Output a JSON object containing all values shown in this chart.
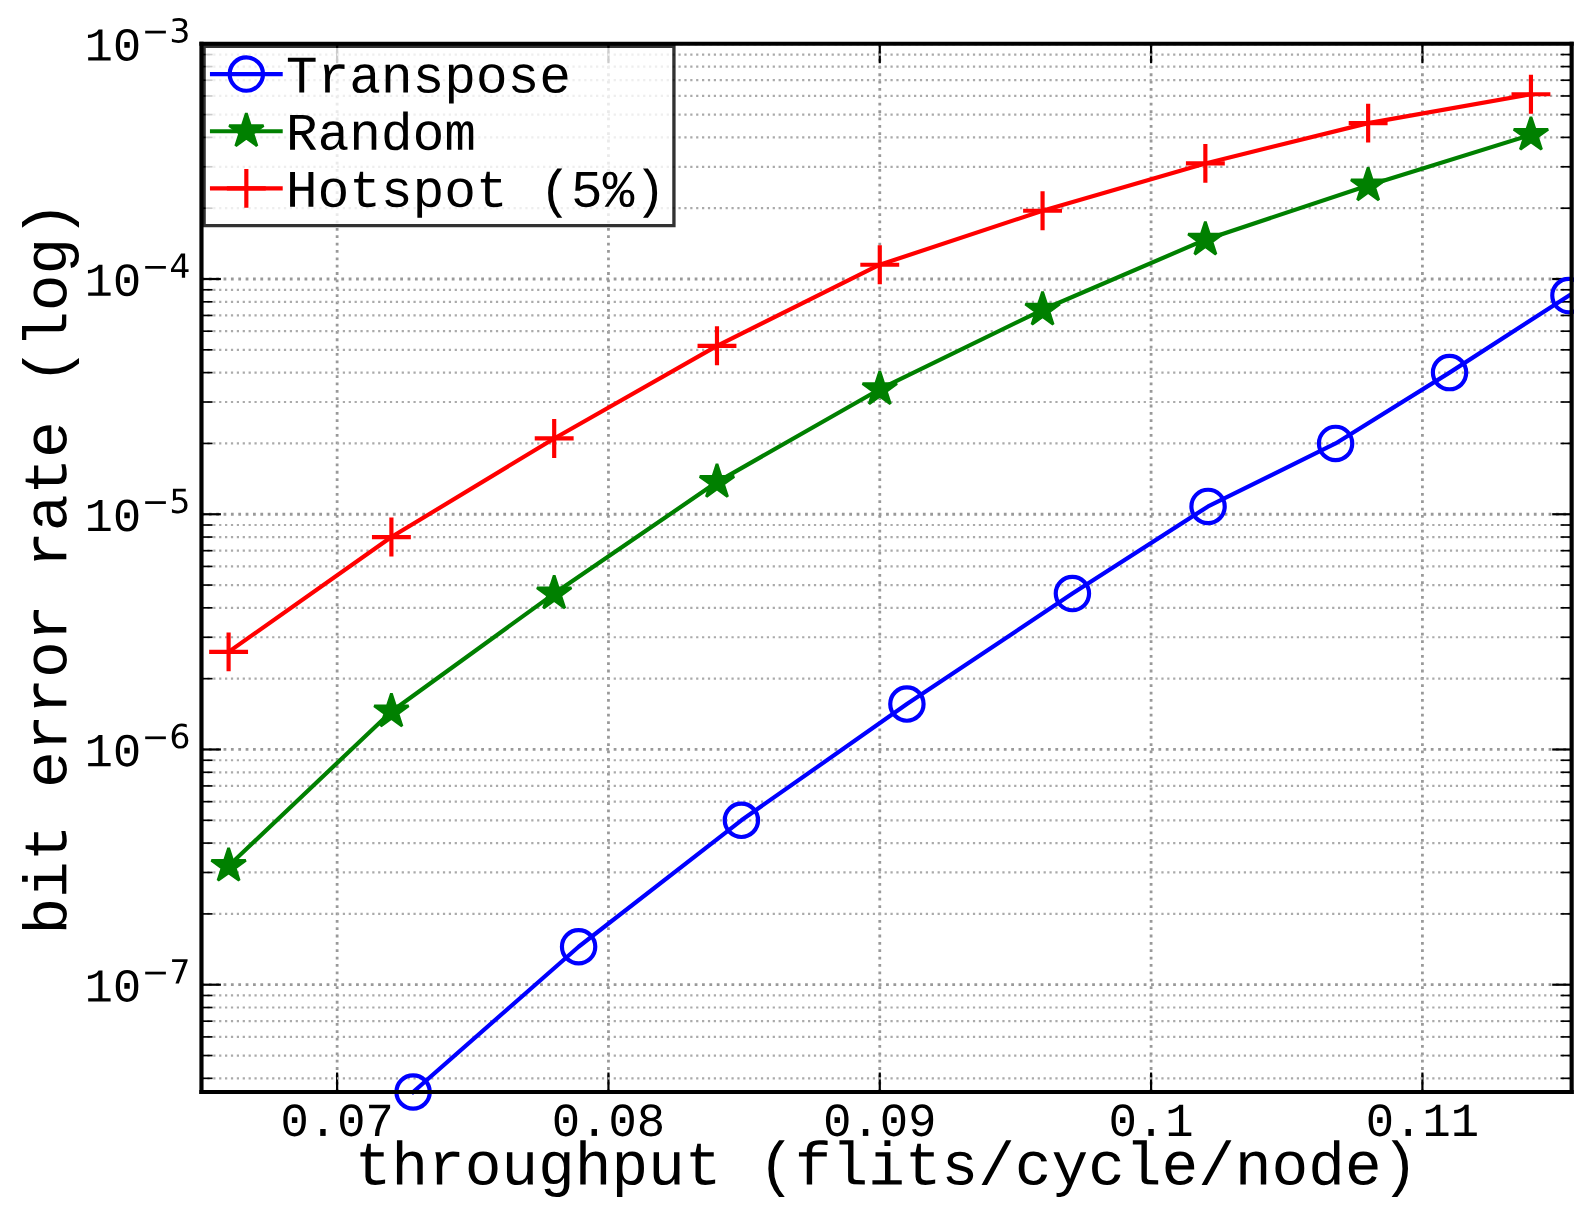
{
  "chart_data": {
    "type": "line",
    "xlabel": "throughput (flits/cycle/node)",
    "ylabel": "bit error rate (log)",
    "log": "y",
    "grid": true,
    "legend": "top left",
    "xlim": [
      0.065,
      0.1155
    ],
    "xticks": [
      0.07,
      0.08,
      0.09,
      0.1,
      0.11
    ],
    "ylim": [
      3.5e-08,
      0.001
    ],
    "yticks": [
      {
        "value": 1e-07,
        "label": "10$^{−7}$"
      },
      {
        "value": 1e-06,
        "label": "10$^{−6}$"
      },
      {
        "value": 1e-05,
        "label": "10$^{−5}$"
      },
      {
        "value": 0.0001,
        "label": "10$^{−4}$"
      },
      {
        "value": 0.001,
        "label": "10$^{−3}$"
      }
    ],
    "series": [
      {
        "name": "Transpose",
        "color": "#0000ff",
        "marker": "circle",
        "x": [
          0.0728,
          0.0789,
          0.0849,
          0.091,
          0.0971,
          0.1021,
          0.1068,
          0.111,
          0.1154
        ],
        "values": [
          3.5e-08,
          1.45e-07,
          5e-07,
          1.56e-06,
          4.6e-06,
          1.08e-05,
          2e-05,
          4e-05,
          8.5e-05
        ]
      },
      {
        "name": "Random",
        "color": "#008000",
        "marker": "star",
        "x": [
          0.066,
          0.072,
          0.078,
          0.084,
          0.09,
          0.096,
          0.102,
          0.108,
          0.114
        ],
        "values": [
          3.2e-07,
          1.45e-06,
          4.6e-06,
          1.37e-05,
          3.4e-05,
          7.4e-05,
          0.000147,
          0.00025,
          0.00041
        ]
      },
      {
        "name": "Hotspot (5%)",
        "color": "#ff0000",
        "marker": "cross",
        "x": [
          0.066,
          0.072,
          0.078,
          0.084,
          0.09,
          0.096,
          0.102,
          0.108,
          0.114
        ],
        "values": [
          2.6e-06,
          8e-06,
          2.1e-05,
          5.2e-05,
          0.000115,
          0.000195,
          0.00031,
          0.00046,
          0.00061
        ]
      }
    ]
  }
}
